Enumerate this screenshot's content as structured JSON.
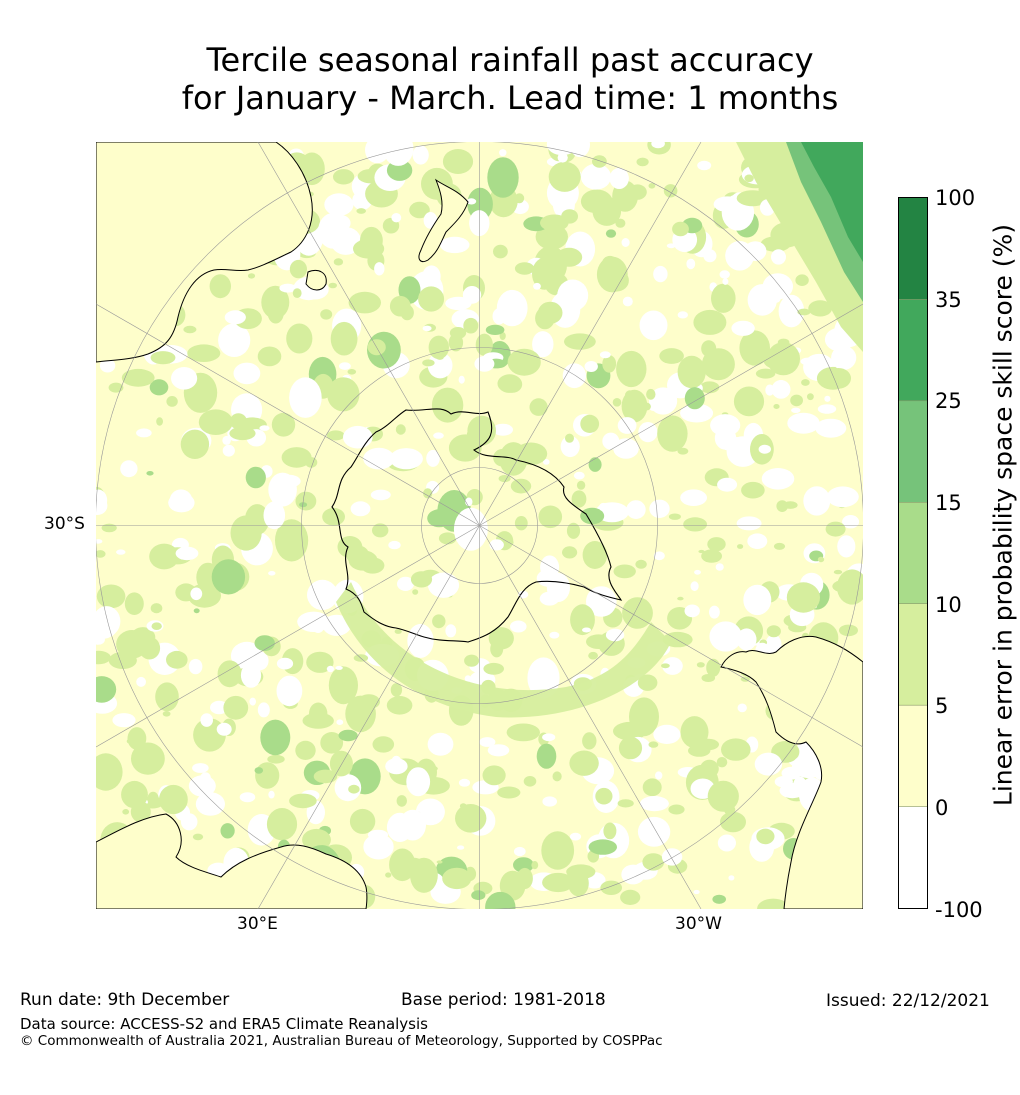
{
  "title": {
    "line1": "Tercile seasonal rainfall past accuracy",
    "line2": "for January - March. Lead time: 1 months"
  },
  "map": {
    "labels": {
      "lat_30s": "30°S",
      "lon_30e": "30°E",
      "lon_30w": "30°W"
    },
    "colors": {
      "ocean_light": "#fefecb",
      "green_5_10": "#d6ee9e",
      "green_10_15": "#a9dc8a",
      "green_15_25": "#76c37a",
      "green_25_35": "#41a85c",
      "green_35_100": "#238443",
      "white": "#ffffff",
      "grid": "#999999",
      "coast": "#000000"
    }
  },
  "colorbar": {
    "title": "Linear error in probability space skill score (%)",
    "ticks": [
      "100",
      "35",
      "25",
      "15",
      "10",
      "5",
      "0",
      "-100"
    ],
    "bins": [
      {
        "from": "35",
        "to": "100",
        "color": "#238443"
      },
      {
        "from": "25",
        "to": "35",
        "color": "#41a85c"
      },
      {
        "from": "15",
        "to": "25",
        "color": "#76c37a"
      },
      {
        "from": "10",
        "to": "15",
        "color": "#a9dc8a"
      },
      {
        "from": "5",
        "to": "10",
        "color": "#d6ee9e"
      },
      {
        "from": "0",
        "to": "5",
        "color": "#fefecb"
      },
      {
        "from": "-100",
        "to": "0",
        "color": "#ffffff"
      }
    ]
  },
  "footer": {
    "run_date": "Run date: 9th December",
    "base_period": "Base period: 1981-2018",
    "issued": "Issued: 22/12/2021",
    "data_source": "Data source: ACCESS-S2 and ERA5 Climate Reanalysis",
    "copyright": "© Commonwealth of Australia 2021, Australian Bureau of Meteorology, Supported by COSPPac"
  }
}
